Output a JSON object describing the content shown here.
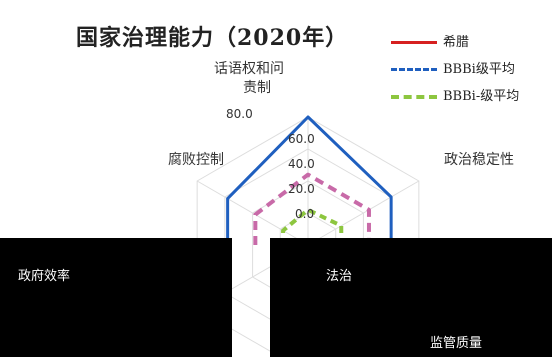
{
  "title": "国家治理能力（2020年）",
  "legend": [
    {
      "label": "希腊",
      "color": "#d62020",
      "dash": "solid"
    },
    {
      "label": "BBBi级平均",
      "color": "#1f5fbf",
      "dash": "dashed"
    },
    {
      "label": "BBBi-级平均",
      "color": "#8dc63f",
      "dash": "dashed"
    }
  ],
  "axes": {
    "top_line1": "话语权和问",
    "top_line2": "责制",
    "upper_right": "政治稳定性",
    "upper_left": "腐败控制",
    "left": "政府效率",
    "center_bottom": "法治",
    "bottom_right": "监管质量"
  },
  "ticks": [
    "0.0",
    "20.0",
    "40.0",
    "60.0",
    "80.0"
  ],
  "chart_data": {
    "type": "radar",
    "title": "国家治理能力（2020年）",
    "rlim": [
      0,
      80
    ],
    "ticks": [
      0,
      20,
      40,
      60,
      80
    ],
    "categories": [
      "话语权和问责制",
      "政治稳定性",
      "监管质量",
      "法治",
      "政府效率",
      "腐败控制"
    ],
    "series": [
      {
        "name": "希腊",
        "color": "#d62020",
        "values": [
          null,
          null,
          null,
          null,
          null,
          null
        ]
      },
      {
        "name": "BBBi级平均",
        "color": "#1f5fbf",
        "values": [
          80,
          60,
          null,
          null,
          null,
          58
        ]
      },
      {
        "name": "BBBi-级平均",
        "color": "#8dc63f",
        "values": [
          22,
          24,
          null,
          null,
          null,
          18
        ]
      },
      {
        "name": "",
        "color": "#c86aa8",
        "values": [
          44,
          44,
          null,
          null,
          null,
          38
        ]
      }
    ]
  }
}
